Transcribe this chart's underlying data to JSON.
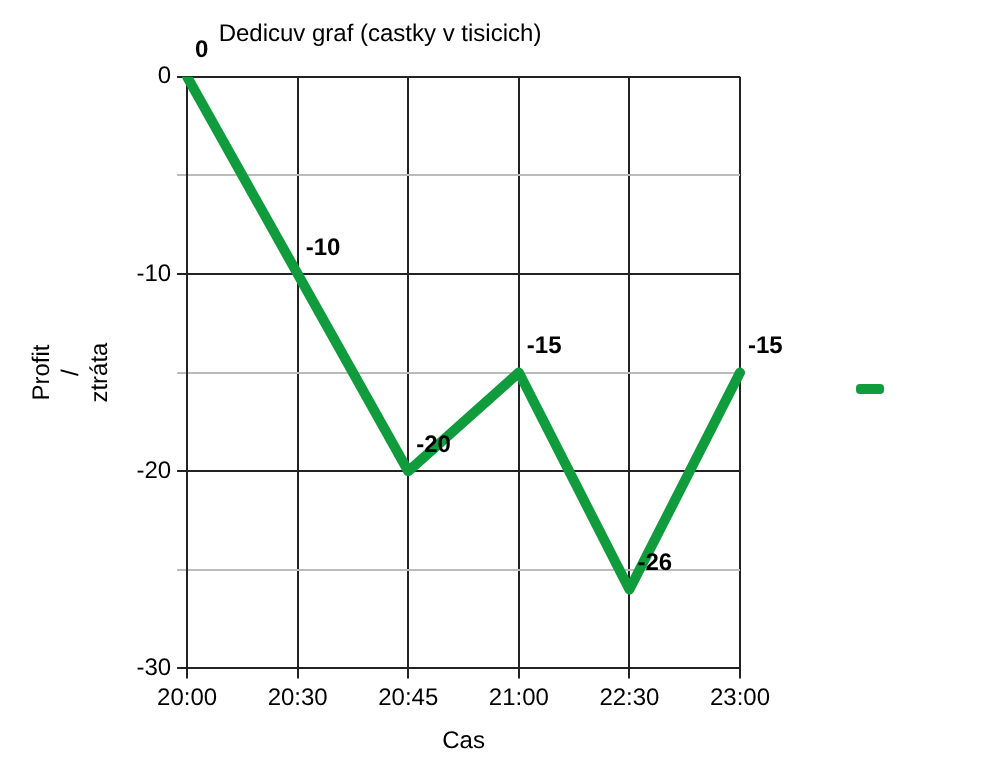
{
  "chart_data": {
    "type": "line",
    "title": "Dedicuv graf (castky v tisicich)",
    "xlabel": "Cas",
    "ylabel": "Profit / ztráta",
    "categories": [
      "20:00",
      "20:30",
      "20:45",
      "21:00",
      "22:30",
      "23:00"
    ],
    "series": [
      {
        "color": "#109c3c",
        "values": [
          0,
          -10,
          -20,
          -15,
          -26,
          -15
        ]
      }
    ],
    "ylim": [
      -30,
      0
    ],
    "yticks": [
      -30,
      {
        "value": -25,
        "label": null
      },
      -20,
      {
        "value": -15,
        "label": null
      },
      -10,
      {
        "value": -5,
        "label": null
      },
      0
    ],
    "grid": true,
    "marker": "none",
    "line_style": "solid",
    "data_labels": true
  }
}
